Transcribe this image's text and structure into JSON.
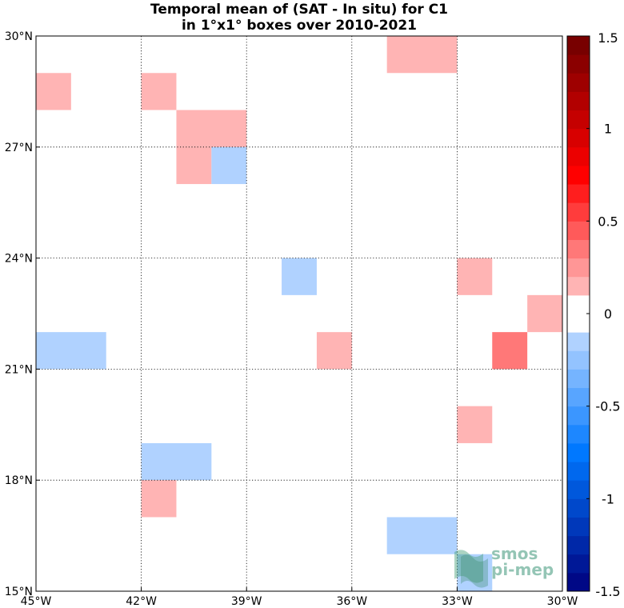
{
  "chart_data": {
    "type": "heatmap",
    "title_line1": "Temporal mean of (SAT - In situ) for C1",
    "title_line2": "in 1°x1° boxes over 2010-2021",
    "xlim": [
      -45,
      -30
    ],
    "ylim": [
      15,
      30
    ],
    "x_ticks": [
      {
        "value": -45,
        "label": "45°W"
      },
      {
        "value": -42,
        "label": "42°W"
      },
      {
        "value": -39,
        "label": "39°W"
      },
      {
        "value": -36,
        "label": "36°W"
      },
      {
        "value": -33,
        "label": "33°W"
      },
      {
        "value": -30,
        "label": "30°W"
      }
    ],
    "y_ticks": [
      {
        "value": 30,
        "label": "30°N"
      },
      {
        "value": 27,
        "label": "27°N"
      },
      {
        "value": 24,
        "label": "24°N"
      },
      {
        "value": 21,
        "label": "21°N"
      },
      {
        "value": 18,
        "label": "18°N"
      },
      {
        "value": 15,
        "label": "15°N"
      }
    ],
    "grid": true,
    "grid_style": "dotted",
    "colorbar": {
      "range": [
        -1.5,
        1.5
      ],
      "step": 0.1,
      "tick_values": [
        1.5,
        1,
        0.5,
        0,
        -0.5,
        -1,
        -1.5
      ],
      "tick_labels": [
        "1.5",
        "1",
        "0.5",
        "0",
        "-0.5",
        "-1",
        "-1.5"
      ],
      "placement": "right"
    },
    "cells": [
      {
        "lon": -35,
        "lat": 29,
        "w": 2,
        "value": 0.15
      },
      {
        "lon": -45,
        "lat": 28,
        "w": 1,
        "value": 0.15
      },
      {
        "lon": -42,
        "lat": 28,
        "w": 1,
        "value": 0.15
      },
      {
        "lon": -41,
        "lat": 27,
        "w": 2,
        "value": 0.15
      },
      {
        "lon": -41,
        "lat": 26,
        "w": 1,
        "value": 0.15
      },
      {
        "lon": -40,
        "lat": 26,
        "w": 1,
        "value": -0.15
      },
      {
        "lon": -38,
        "lat": 23,
        "w": 1,
        "value": -0.15
      },
      {
        "lon": -33,
        "lat": 23,
        "w": 1,
        "value": 0.15
      },
      {
        "lon": -31,
        "lat": 22,
        "w": 1,
        "value": 0.15
      },
      {
        "lon": -45,
        "lat": 21,
        "w": 2,
        "value": -0.15
      },
      {
        "lon": -37,
        "lat": 21,
        "w": 1,
        "value": 0.15
      },
      {
        "lon": -32,
        "lat": 21,
        "w": 1,
        "value": 0.35
      },
      {
        "lon": -33,
        "lat": 19,
        "w": 1,
        "value": 0.15
      },
      {
        "lon": -42,
        "lat": 18,
        "w": 2,
        "value": -0.15
      },
      {
        "lon": -42,
        "lat": 17,
        "w": 1,
        "value": 0.15
      },
      {
        "lon": -35,
        "lat": 16,
        "w": 2,
        "value": -0.15
      },
      {
        "lon": -33,
        "lat": 15,
        "w": 1,
        "value": -0.15
      }
    ]
  },
  "watermark": {
    "line1": "smos",
    "line2": "pi-mep"
  }
}
